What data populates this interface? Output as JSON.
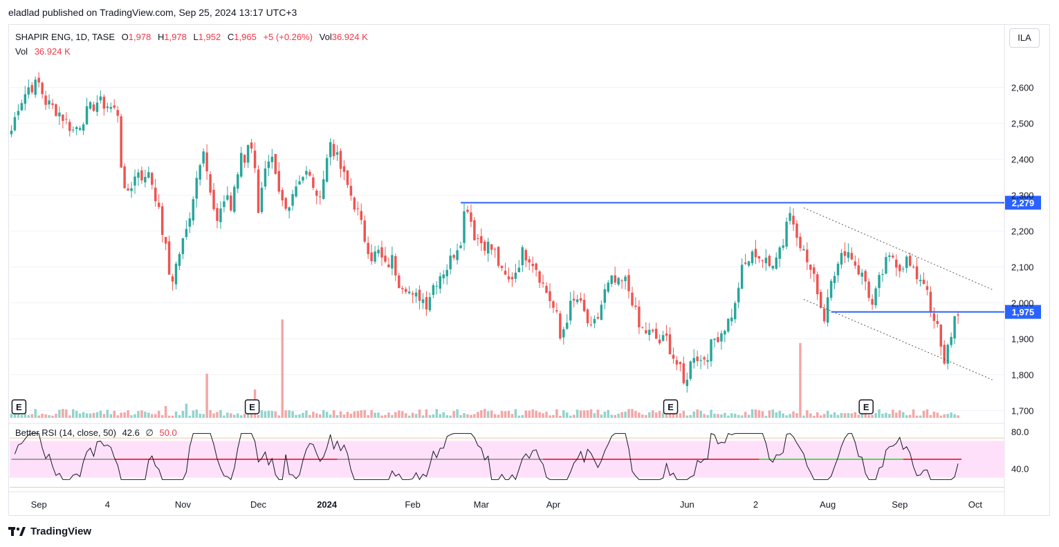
{
  "header": {
    "caption": "eladlad published on TradingView.com, Sep 25, 2024 13:17 UTC+3"
  },
  "legend": {
    "symbol": "SHAPIR ENG, 1D, TASE",
    "open_label": "O",
    "open": "1,978",
    "high_label": "H",
    "high": "1,978",
    "low_label": "L",
    "low": "1,952",
    "close_label": "C",
    "close": "1,965",
    "change": "+5 (+0.26%)",
    "vol_label": "Vol",
    "vol": "36.924 K",
    "vol_row_label": "Vol",
    "vol_row_value": "36.924 K"
  },
  "currency_button": "ILA",
  "rsi_legend": {
    "name": "Better RSI (14, close, 50)",
    "value": "42.6",
    "symbol": "∅",
    "mid": "50.0"
  },
  "footer": {
    "brand": "TradingView"
  },
  "colors": {
    "up": "#26a69a",
    "down": "#ef5350",
    "up_vol": "#8fd4cc",
    "down_vol": "#f4a6a6",
    "level": "#2962ff",
    "rsi_band": "#ffe0fa",
    "rsi_red": "#f23645",
    "rsi_green": "#4be04b",
    "rsi_grey": "#a0a0a0"
  },
  "chart_data": {
    "type": "candlestick",
    "x_tick_labels": [
      {
        "label": "Sep",
        "bar": 8,
        "bold": false
      },
      {
        "label": "4",
        "bar": 28,
        "bold": false
      },
      {
        "label": "Nov",
        "bar": 50,
        "bold": false
      },
      {
        "label": "Dec",
        "bar": 72,
        "bold": false
      },
      {
        "label": "2024",
        "bar": 92,
        "bold": true
      },
      {
        "label": "Feb",
        "bar": 117,
        "bold": false
      },
      {
        "label": "Mar",
        "bar": 137,
        "bold": false
      },
      {
        "label": "Apr",
        "bar": 158,
        "bold": false
      },
      {
        "label": "Jun",
        "bar": 197,
        "bold": false
      },
      {
        "label": "2",
        "bar": 217,
        "bold": false
      },
      {
        "label": "Aug",
        "bar": 238,
        "bold": false
      },
      {
        "label": "Sep",
        "bar": 259,
        "bold": false
      },
      {
        "label": "Oct",
        "bar": 281,
        "bold": false
      }
    ],
    "y_ticks": [
      1700,
      1800,
      1900,
      2000,
      2100,
      2200,
      2300,
      2400,
      2500,
      2600
    ],
    "y_tick_labels": [
      "1,700",
      "1,800",
      "1,900",
      "2,000",
      "2,100",
      "2,200",
      "2,300",
      "2,400",
      "2,500",
      "2,600"
    ],
    "ylim": [
      1680,
      2680
    ],
    "rsi_ticks": [
      {
        "value": 40,
        "label": "40.0"
      },
      {
        "value": 80,
        "label": "80.0"
      }
    ],
    "rsi_band": [
      30,
      70
    ],
    "rsi_ylim": [
      20,
      80
    ],
    "price_levels": [
      {
        "value": 2279,
        "label": "2,279",
        "from_bar": 131
      },
      {
        "value": 1975,
        "label": "1,975",
        "from_bar": 239
      }
    ],
    "channel_lines": [
      {
        "from": [
          231,
          2265
        ],
        "to": [
          286,
          2037
        ]
      },
      {
        "from": [
          231,
          2010
        ],
        "to": [
          286,
          1786
        ]
      }
    ],
    "earnings_markers": [
      {
        "label": "E",
        "bar": 2
      },
      {
        "label": "E",
        "bar": 70
      },
      {
        "label": "E",
        "bar": 192
      },
      {
        "label": "E",
        "bar": 249
      }
    ],
    "close_anchors": [
      [
        0,
        2480
      ],
      [
        2,
        2550
      ],
      [
        5,
        2600
      ],
      [
        8,
        2610
      ],
      [
        10,
        2560
      ],
      [
        14,
        2530
      ],
      [
        18,
        2480
      ],
      [
        20,
        2500
      ],
      [
        22,
        2530
      ],
      [
        25,
        2560
      ],
      [
        28,
        2550
      ],
      [
        31,
        2530
      ],
      [
        32,
        2390
      ],
      [
        33,
        2300
      ],
      [
        35,
        2330
      ],
      [
        37,
        2370
      ],
      [
        39,
        2340
      ],
      [
        40,
        2370
      ],
      [
        42,
        2300
      ],
      [
        44,
        2200
      ],
      [
        45,
        2150
      ],
      [
        46,
        2080
      ],
      [
        47,
        2070
      ],
      [
        49,
        2140
      ],
      [
        51,
        2200
      ],
      [
        53,
        2300
      ],
      [
        55,
        2400
      ],
      [
        56,
        2440
      ],
      [
        58,
        2300
      ],
      [
        60,
        2210
      ],
      [
        61,
        2270
      ],
      [
        63,
        2300
      ],
      [
        64,
        2260
      ],
      [
        66,
        2360
      ],
      [
        67,
        2420
      ],
      [
        68,
        2400
      ],
      [
        69,
        2450
      ],
      [
        71,
        2390
      ],
      [
        72,
        2260
      ],
      [
        74,
        2360
      ],
      [
        76,
        2390
      ],
      [
        78,
        2300
      ],
      [
        80,
        2260
      ],
      [
        82,
        2310
      ],
      [
        84,
        2350
      ],
      [
        86,
        2360
      ],
      [
        88,
        2330
      ],
      [
        89,
        2280
      ],
      [
        91,
        2350
      ],
      [
        93,
        2450
      ],
      [
        95,
        2400
      ],
      [
        97,
        2350
      ],
      [
        99,
        2300
      ],
      [
        101,
        2250
      ],
      [
        103,
        2180
      ],
      [
        105,
        2130
      ],
      [
        107,
        2140
      ],
      [
        109,
        2100
      ],
      [
        111,
        2120
      ],
      [
        113,
        2060
      ],
      [
        115,
        2050
      ],
      [
        117,
        2010
      ],
      [
        119,
        2020
      ],
      [
        121,
        2000
      ],
      [
        123,
        2050
      ],
      [
        125,
        2080
      ],
      [
        127,
        2100
      ],
      [
        129,
        2140
      ],
      [
        131,
        2180
      ],
      [
        132,
        2250
      ],
      [
        133,
        2270
      ],
      [
        135,
        2190
      ],
      [
        137,
        2170
      ],
      [
        139,
        2160
      ],
      [
        141,
        2140
      ],
      [
        143,
        2080
      ],
      [
        145,
        2060
      ],
      [
        147,
        2090
      ],
      [
        149,
        2140
      ],
      [
        151,
        2130
      ],
      [
        153,
        2100
      ],
      [
        155,
        2050
      ],
      [
        157,
        2010
      ],
      [
        159,
        1960
      ],
      [
        160,
        1900
      ],
      [
        161,
        1930
      ],
      [
        163,
        1990
      ],
      [
        165,
        2010
      ],
      [
        167,
        1970
      ],
      [
        169,
        1920
      ],
      [
        171,
        1960
      ],
      [
        173,
        2030
      ],
      [
        175,
        2060
      ],
      [
        177,
        2050
      ],
      [
        179,
        2060
      ],
      [
        181,
        2010
      ],
      [
        183,
        1930
      ],
      [
        185,
        1920
      ],
      [
        187,
        1910
      ],
      [
        189,
        1890
      ],
      [
        191,
        1900
      ],
      [
        193,
        1850
      ],
      [
        195,
        1810
      ],
      [
        196,
        1770
      ],
      [
        197,
        1800
      ],
      [
        199,
        1860
      ],
      [
        201,
        1840
      ],
      [
        203,
        1860
      ],
      [
        205,
        1900
      ],
      [
        207,
        1920
      ],
      [
        209,
        1950
      ],
      [
        211,
        1990
      ],
      [
        212,
        2050
      ],
      [
        213,
        2090
      ],
      [
        215,
        2120
      ],
      [
        217,
        2140
      ],
      [
        219,
        2120
      ],
      [
        221,
        2100
      ],
      [
        223,
        2140
      ],
      [
        225,
        2170
      ],
      [
        226,
        2230
      ],
      [
        227,
        2250
      ],
      [
        229,
        2200
      ],
      [
        231,
        2140
      ],
      [
        233,
        2090
      ],
      [
        235,
        2040
      ],
      [
        236,
        1990
      ],
      [
        237,
        1960
      ],
      [
        239,
        2080
      ],
      [
        241,
        2100
      ],
      [
        243,
        2150
      ],
      [
        245,
        2130
      ],
      [
        247,
        2090
      ],
      [
        249,
        2060
      ],
      [
        251,
        1990
      ],
      [
        253,
        2060
      ],
      [
        255,
        2110
      ],
      [
        257,
        2130
      ],
      [
        259,
        2100
      ],
      [
        261,
        2120
      ],
      [
        263,
        2080
      ],
      [
        265,
        2070
      ],
      [
        267,
        2050
      ],
      [
        268,
        1960
      ],
      [
        270,
        1930
      ],
      [
        271,
        1870
      ],
      [
        272,
        1840
      ],
      [
        273,
        1880
      ],
      [
        274,
        1920
      ],
      [
        275,
        1955
      ],
      [
        276,
        1965
      ]
    ],
    "volume_spikes": [
      {
        "bar": 45,
        "value": 15
      },
      {
        "bar": 51,
        "value": 18
      },
      {
        "bar": 57,
        "value": 56
      },
      {
        "bar": 71,
        "value": 36
      },
      {
        "bar": 79,
        "value": 125
      },
      {
        "bar": 230,
        "value": 95
      }
    ],
    "last_bar": 276,
    "total_bars": 290
  }
}
